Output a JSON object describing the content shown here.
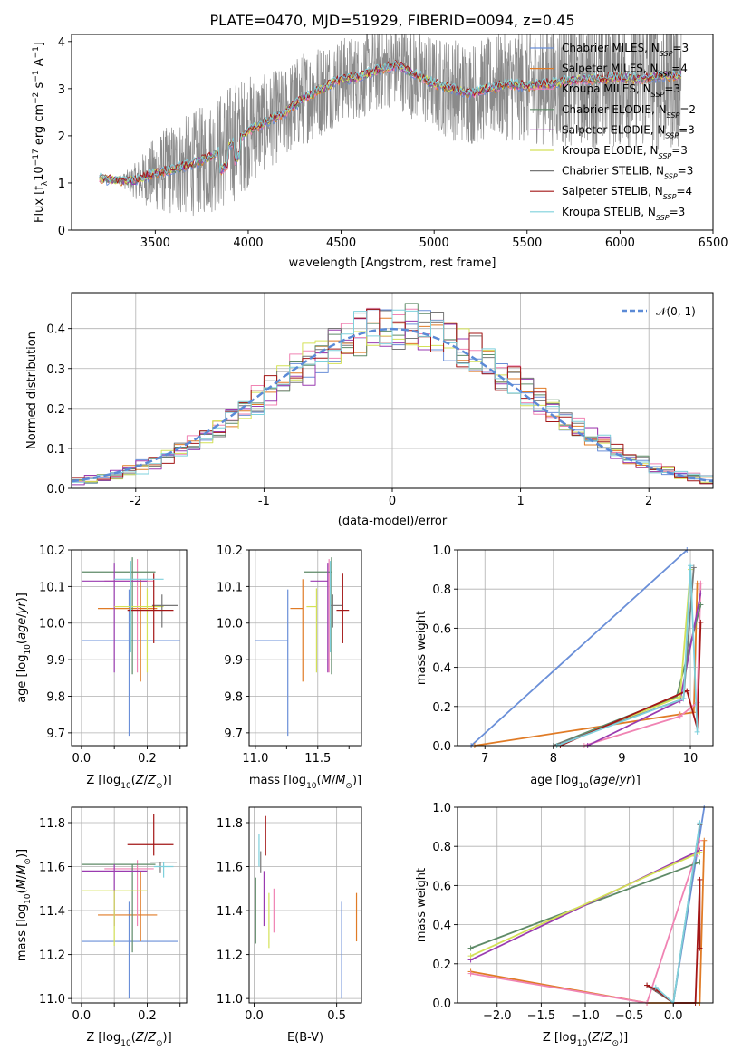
{
  "title": "PLATE=0470, MJD=51929, FIBERID=0094, z=0.45",
  "colors": [
    "#6a8fd8",
    "#e07b26",
    "#f083b3",
    "#5e8a67",
    "#9a3bb0",
    "#d4e157",
    "#777777",
    "#a31616",
    "#7ed0dc"
  ],
  "chart_data": [
    {
      "id": "spectrum",
      "type": "line",
      "xlabel": "wavelength [Angstrom, rest frame]",
      "ylabel": "Flux [f_λ10^-17 erg cm^-2 s^-1 A^-1]",
      "xlim": [
        3050,
        6500
      ],
      "ylim": [
        0,
        4.15
      ],
      "xticks": [
        3500,
        4000,
        4500,
        5000,
        5500,
        6000,
        6500
      ],
      "yticks": [
        0,
        1,
        2,
        3,
        4
      ],
      "grid": false,
      "legend_position": "upper-right",
      "data_series": {
        "name": "",
        "x": [
          3200,
          3300,
          3400,
          3500,
          3600,
          3700,
          3800,
          3900,
          4000,
          4100,
          4200,
          4300,
          4400,
          4500,
          4600,
          4700,
          4800,
          4900,
          5000,
          5100,
          5200,
          5300,
          5400,
          5500,
          5600,
          5700,
          5800,
          5900,
          6000,
          6100,
          6200,
          6330
        ],
        "y": [
          1.1,
          1.05,
          1.05,
          1.2,
          1.3,
          1.4,
          1.55,
          1.8,
          2.1,
          2.3,
          2.5,
          2.8,
          3.0,
          3.2,
          3.25,
          3.4,
          3.5,
          3.3,
          3.1,
          3.0,
          2.9,
          3.0,
          3.1,
          3.05,
          3.1,
          3.15,
          3.2,
          3.2,
          3.25,
          3.2,
          3.25,
          3.3
        ],
        "noise": [
          0.05,
          0.05,
          0.4,
          0.8,
          1.0,
          1.1,
          1.2,
          1.3,
          1.2,
          1.0,
          1.0,
          1.0,
          1.0,
          0.9,
          0.9,
          0.9,
          0.9,
          1.0,
          1.0,
          1.1,
          1.1,
          1.1,
          1.2,
          1.2,
          1.3,
          1.4,
          1.4,
          1.5,
          1.5,
          1.5,
          1.6,
          1.6
        ]
      },
      "model_series": [
        {
          "name": "Chabrier MILES, N_SSP=3",
          "label": "Chabrier MILES, N",
          "sub": "SSP",
          "suffix": "=3"
        },
        {
          "name": "Salpeter MILES, N_SSP=4",
          "label": "Salpeter MILES, N",
          "sub": "SSP",
          "suffix": "=4"
        },
        {
          "name": "Kroupa MILES, N_SSP=3",
          "label": "Kroupa MILES, N",
          "sub": "SSP",
          "suffix": "=3"
        },
        {
          "name": "Chabrier ELODIE, N_SSP=2",
          "label": "Chabrier ELODIE, N",
          "sub": "SSP",
          "suffix": "=2"
        },
        {
          "name": "Salpeter ELODIE, N_SSP=3",
          "label": "Salpeter ELODIE, N",
          "sub": "SSP",
          "suffix": "=3"
        },
        {
          "name": "Kroupa ELODIE, N_SSP=3",
          "label": "Kroupa ELODIE, N",
          "sub": "SSP",
          "suffix": "=3"
        },
        {
          "name": "Chabrier STELIB, N_SSP=3",
          "label": "Chabrier STELIB, N",
          "sub": "SSP",
          "suffix": "=3"
        },
        {
          "name": "Salpeter STELIB, N_SSP=4",
          "label": "Salpeter STELIB, N",
          "sub": "SSP",
          "suffix": "=4"
        },
        {
          "name": "Kroupa STELIB, N_SSP=3",
          "label": "Kroupa STELIB, N",
          "sub": "SSP",
          "suffix": "=3"
        }
      ]
    },
    {
      "id": "residuals",
      "type": "line",
      "xlabel": "(data-model)/error",
      "ylabel": "Normed distribution",
      "xlim": [
        -2.5,
        2.5
      ],
      "ylim": [
        0,
        0.49
      ],
      "xticks": [
        -2,
        -1,
        0,
        1,
        2
      ],
      "yticks": [
        0.0,
        0.1,
        0.2,
        0.3,
        0.4
      ],
      "grid": true,
      "legend_position": "upper-right",
      "reference": {
        "name": "N(0,1)",
        "label": "𝒩(0, 1)",
        "mu": 0,
        "sigma": 1
      },
      "bin_width": 0.1,
      "bin_start": -2.5
    },
    {
      "id": "age_vs_Z",
      "type": "scatter",
      "xlabel": "Z [log10(Z/Z⊙)]",
      "ylabel": "age [log10(age/yr)]",
      "xlim": [
        -0.03,
        0.32
      ],
      "ylim": [
        9.665,
        10.2
      ],
      "xticks": [
        0.0,
        0.1,
        0.2,
        0.3
      ],
      "xticklabels": [
        "0.0",
        "",
        "0.2",
        ""
      ],
      "yticks": [
        9.7,
        9.8,
        9.9,
        10.0,
        10.1,
        10.2
      ],
      "grid": true,
      "points": [
        {
          "x": 0.145,
          "xerr": [
            0.145,
            0.155
          ],
          "y": 9.952,
          "yerr": [
            0.26,
            0.14
          ]
        },
        {
          "x": 0.18,
          "xerr": [
            0.13,
            0.05
          ],
          "y": 10.04,
          "yerr": [
            0.2,
            0.08
          ]
        },
        {
          "x": 0.17,
          "xerr": [
            0.1,
            0.05
          ],
          "y": 10.115,
          "yerr": [
            0.25,
            0.06
          ]
        },
        {
          "x": 0.155,
          "xerr": [
            0.155,
            0.07
          ],
          "y": 10.14,
          "yerr": [
            0.28,
            0.04
          ]
        },
        {
          "x": 0.1,
          "xerr": [
            0.1,
            0.1
          ],
          "y": 10.115,
          "yerr": [
            0.25,
            0.05
          ]
        },
        {
          "x": 0.2,
          "xerr": [
            0.1,
            0.05
          ],
          "y": 10.045,
          "yerr": [
            0.18,
            0.05
          ]
        },
        {
          "x": 0.245,
          "xerr": [
            0.03,
            0.05
          ],
          "y": 10.048,
          "yerr": [
            0.06,
            0.03
          ]
        },
        {
          "x": 0.22,
          "xerr": [
            0.08,
            0.06
          ],
          "y": 10.035,
          "yerr": [
            0.09,
            0.1
          ]
        },
        {
          "x": 0.15,
          "xerr": [
            0.05,
            0.1
          ],
          "y": 10.12,
          "yerr": [
            0.2,
            0.05
          ]
        }
      ]
    },
    {
      "id": "age_vs_mass",
      "type": "scatter",
      "xlabel": "mass [log10(M/M⊙)]",
      "ylabel": "",
      "xlim": [
        10.95,
        11.85
      ],
      "ylim": [
        9.665,
        10.2
      ],
      "xticks": [
        11.0,
        11.5
      ],
      "xticklabels": [
        "11.0",
        "11.5"
      ],
      "xminorticks": [
        11.25,
        11.75
      ],
      "yticks": [
        9.7,
        9.8,
        9.9,
        10.0,
        10.1,
        10.2
      ],
      "grid": true,
      "points": [
        {
          "x": 11.26,
          "xerr": [
            0.26,
            0.0
          ],
          "y": 9.952,
          "yerr": [
            0.26,
            0.14
          ]
        },
        {
          "x": 11.38,
          "xerr": [
            0.1,
            0.0
          ],
          "y": 10.04,
          "yerr": [
            0.2,
            0.08
          ]
        },
        {
          "x": 11.59,
          "xerr": [
            0.0,
            0.0
          ],
          "y": 10.115,
          "yerr": [
            0.25,
            0.06
          ]
        },
        {
          "x": 11.61,
          "xerr": [
            0.22,
            0.0
          ],
          "y": 10.14,
          "yerr": [
            0.28,
            0.04
          ]
        },
        {
          "x": 11.58,
          "xerr": [
            0.14,
            0.0
          ],
          "y": 10.115,
          "yerr": [
            0.25,
            0.05
          ]
        },
        {
          "x": 11.49,
          "xerr": [
            0.08,
            0.0
          ],
          "y": 10.045,
          "yerr": [
            0.18,
            0.05
          ]
        },
        {
          "x": 11.62,
          "xerr": [
            0.02,
            0.08
          ],
          "y": 10.048,
          "yerr": [
            0.06,
            0.03
          ]
        },
        {
          "x": 11.7,
          "xerr": [
            0.05,
            0.05
          ],
          "y": 10.035,
          "yerr": [
            0.09,
            0.1
          ]
        },
        {
          "x": 11.6,
          "xerr": [
            0.0,
            0.0
          ],
          "y": 10.12,
          "yerr": [
            0.2,
            0.05
          ]
        }
      ]
    },
    {
      "id": "massweight_vs_age",
      "type": "line",
      "xlabel": "age [log10(age/yr)]",
      "ylabel": "mass weight",
      "xlim": [
        6.6,
        10.33
      ],
      "ylim": [
        0,
        1.0
      ],
      "xticks": [
        7,
        8,
        9,
        10
      ],
      "yticks": [
        0.0,
        0.2,
        0.4,
        0.6,
        0.8,
        1.0
      ],
      "grid": true,
      "series": [
        {
          "x": [
            6.8,
            9.95
          ],
          "y": [
            0.0,
            1.0
          ]
        },
        {
          "x": [
            6.85,
            9.85,
            10.05,
            10.1
          ],
          "y": [
            0.0,
            0.16,
            0.17,
            0.83
          ]
        },
        {
          "x": [
            8.45,
            9.85,
            10.1,
            10.15
          ],
          "y": [
            0.0,
            0.15,
            0.22,
            0.83
          ]
        },
        {
          "x": [
            8.0,
            9.8,
            10.15
          ],
          "y": [
            0.0,
            0.25,
            0.72
          ]
        },
        {
          "x": [
            8.5,
            9.85,
            10.15
          ],
          "y": [
            0.0,
            0.23,
            0.78
          ]
        },
        {
          "x": [
            8.05,
            9.85,
            10.0
          ],
          "y": [
            0.0,
            0.25,
            0.9
          ]
        },
        {
          "x": [
            8.0,
            9.9,
            10.05
          ],
          "y": [
            0.0,
            0.24,
            0.91
          ]
        },
        {
          "x": [
            8.1,
            9.95,
            10.1,
            10.15
          ],
          "y": [
            0.0,
            0.28,
            0.09,
            0.63
          ]
        },
        {
          "x": [
            8.05,
            9.9,
            10.0,
            10.1
          ],
          "y": [
            0.0,
            0.24,
            0.92,
            0.07
          ]
        }
      ]
    },
    {
      "id": "mass_vs_Z",
      "type": "scatter",
      "xlabel": "Z [log10(Z/Z⊙)]",
      "ylabel": "mass [log10(M/M⊙)]",
      "xlim": [
        -0.03,
        0.32
      ],
      "ylim": [
        10.98,
        11.87
      ],
      "xticks": [
        0.0,
        0.1,
        0.2,
        0.3
      ],
      "xticklabels": [
        "0.0",
        "",
        "0.2",
        ""
      ],
      "yticks": [
        11.0,
        11.2,
        11.4,
        11.6,
        11.8
      ],
      "grid": true,
      "points": [
        {
          "x": 0.145,
          "xerr": [
            0.145,
            0.15
          ],
          "y": 11.26,
          "yerr": [
            0.26,
            0.18
          ]
        },
        {
          "x": 0.18,
          "xerr": [
            0.13,
            0.05
          ],
          "y": 11.38,
          "yerr": [
            0.12,
            0.2
          ]
        },
        {
          "x": 0.17,
          "xerr": [
            0.1,
            0.05
          ],
          "y": 11.59,
          "yerr": [
            0.26,
            0.04
          ]
        },
        {
          "x": 0.155,
          "xerr": [
            0.155,
            0.07
          ],
          "y": 11.61,
          "yerr": [
            0.4,
            0.0
          ]
        },
        {
          "x": 0.1,
          "xerr": [
            0.1,
            0.1
          ],
          "y": 11.58,
          "yerr": [
            0.25,
            0.03
          ]
        },
        {
          "x": 0.1,
          "xerr": [
            0.1,
            0.1
          ],
          "y": 11.49,
          "yerr": [
            0.25,
            0.0
          ]
        },
        {
          "x": 0.24,
          "xerr": [
            0.03,
            0.05
          ],
          "y": 11.62,
          "yerr": [
            0.05,
            0.0
          ]
        },
        {
          "x": 0.22,
          "xerr": [
            0.08,
            0.06
          ],
          "y": 11.7,
          "yerr": [
            0.05,
            0.14
          ]
        },
        {
          "x": 0.25,
          "xerr": [
            0.03,
            0.03
          ],
          "y": 11.6,
          "yerr": [
            0.05,
            0.02
          ]
        }
      ]
    },
    {
      "id": "mass_vs_EBV",
      "type": "scatter",
      "xlabel": "E(B-V)",
      "ylabel": "",
      "xlim": [
        -0.03,
        0.65
      ],
      "ylim": [
        10.98,
        11.87
      ],
      "xticks": [
        0.0,
        0.5
      ],
      "xticklabels": [
        "0.0",
        "0.5"
      ],
      "yticks": [
        11.0,
        11.2,
        11.4,
        11.6,
        11.8
      ],
      "grid": true,
      "points": [
        {
          "x": 0.53,
          "y": 11.26,
          "yerr": [
            0.26,
            0.18
          ]
        },
        {
          "x": 0.62,
          "y": 11.38,
          "yerr": [
            0.12,
            0.1
          ]
        },
        {
          "x": 0.12,
          "y": 11.4,
          "yerr": [
            0.1,
            0.1
          ]
        },
        {
          "x": 0.01,
          "y": 11.55,
          "yerr": [
            0.3,
            0.0
          ]
        },
        {
          "x": 0.06,
          "y": 11.48,
          "yerr": [
            0.15,
            0.1
          ]
        },
        {
          "x": 0.09,
          "y": 11.38,
          "yerr": [
            0.15,
            0.1
          ]
        },
        {
          "x": 0.04,
          "y": 11.62,
          "yerr": [
            0.05,
            0.05
          ]
        },
        {
          "x": 0.07,
          "y": 11.7,
          "yerr": [
            0.05,
            0.13
          ]
        },
        {
          "x": 0.03,
          "y": 11.65,
          "yerr": [
            0.05,
            0.1
          ]
        }
      ]
    },
    {
      "id": "massweight_vs_Z",
      "type": "line",
      "xlabel": "Z [log10(Z/Z⊙)]",
      "ylabel": "mass weight",
      "xlim": [
        -2.45,
        0.45
      ],
      "ylim": [
        0,
        1.0
      ],
      "xticks": [
        -2.0,
        -1.5,
        -1.0,
        -0.5,
        0.0
      ],
      "xticklabels": [
        "−2.0",
        "−1.5",
        "−1.0",
        "−0.5",
        "0.0"
      ],
      "yticks": [
        0.0,
        0.2,
        0.4,
        0.6,
        0.8,
        1.0
      ],
      "grid": true,
      "series": [
        {
          "x": [
            0.0,
            0.35
          ],
          "y": [
            0.0,
            1.0
          ]
        },
        {
          "x": [
            -2.3,
            -0.3,
            0.3,
            0.35
          ],
          "y": [
            0.16,
            0.0,
            0.0,
            0.83
          ]
        },
        {
          "x": [
            -2.3,
            -0.3,
            0.25,
            0.3
          ],
          "y": [
            0.15,
            0.0,
            0.75,
            0.83
          ]
        },
        {
          "x": [
            -2.3,
            0.3
          ],
          "y": [
            0.28,
            0.72
          ]
        },
        {
          "x": [
            -2.3,
            0.3
          ],
          "y": [
            0.22,
            0.78
          ]
        },
        {
          "x": [
            -2.3,
            0.3
          ],
          "y": [
            0.24,
            0.77
          ]
        },
        {
          "x": [
            -0.3,
            0.0,
            0.3
          ],
          "y": [
            0.09,
            0.0,
            0.91
          ]
        },
        {
          "x": [
            -0.3,
            -0.2,
            0.0,
            0.25,
            0.3,
            0.3
          ],
          "y": [
            0.09,
            0.07,
            0.0,
            0.0,
            0.63,
            0.28
          ]
        },
        {
          "x": [
            -0.2,
            0.0,
            0.3
          ],
          "y": [
            0.08,
            0.0,
            0.92
          ]
        }
      ]
    }
  ]
}
